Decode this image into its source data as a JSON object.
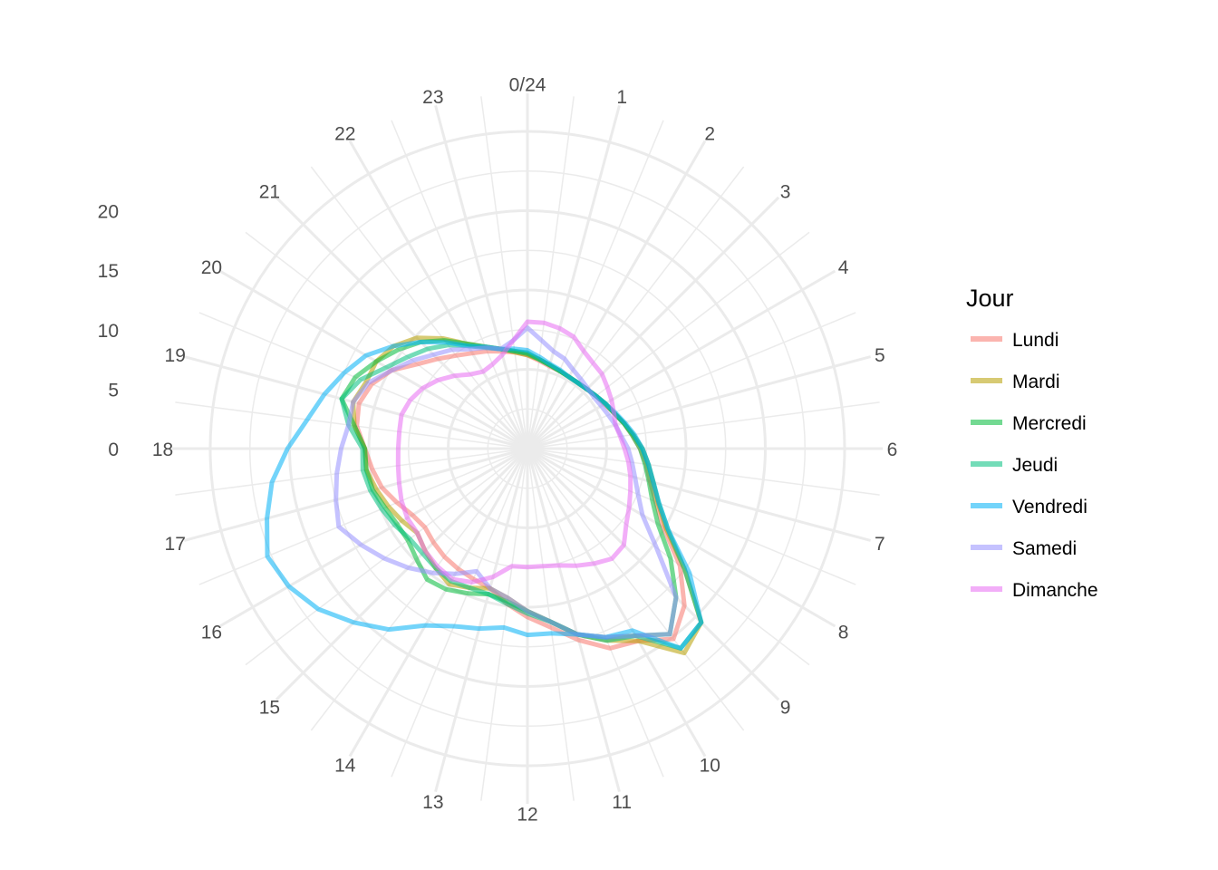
{
  "chart_data": {
    "type": "radar",
    "theta_axis_labels": [
      "0/24",
      "1",
      "2",
      "3",
      "4",
      "5",
      "6",
      "7",
      "8",
      "9",
      "10",
      "11",
      "12",
      "13",
      "14",
      "15",
      "16",
      "17",
      "18",
      "19",
      "20",
      "21",
      "22",
      "23"
    ],
    "r_tick_labels": [
      "0",
      "5",
      "10",
      "15",
      "20"
    ],
    "rlim": [
      0,
      20
    ],
    "legend": {
      "title": "Jour",
      "placement": "right"
    },
    "grid": true,
    "x_step_hours": 0.5,
    "series": [
      {
        "name": "Lundi",
        "color": "#F8766D",
        "values": [
          1.2,
          0.8,
          0.5,
          0.4,
          0.3,
          0.3,
          0.4,
          0.6,
          0.8,
          1.2,
          1.7,
          2.2,
          2.8,
          3.4,
          4.0,
          5.0,
          6.5,
          9.5,
          12.0,
          13.5,
          12.0,
          11.5,
          10.0,
          8.5,
          7.5,
          6.5,
          5.5,
          5.2,
          5.0,
          4.8,
          4.5,
          4.2,
          4.5,
          5.2,
          6.0,
          6.5,
          7.0,
          7.8,
          8.0,
          7.5,
          6.5,
          5.0,
          4.0,
          3.2,
          2.6,
          2.2,
          1.8,
          1.5
        ]
      },
      {
        "name": "Mardi",
        "color": "#B79F00",
        "values": [
          1.2,
          0.9,
          0.6,
          0.4,
          0.3,
          0.3,
          0.4,
          0.6,
          0.9,
          1.2,
          1.7,
          2.3,
          3.0,
          3.6,
          4.3,
          5.2,
          6.8,
          10.0,
          14.0,
          15.0,
          12.0,
          10.8,
          9.5,
          8.0,
          7.0,
          6.0,
          5.5,
          6.0,
          6.5,
          6.0,
          5.5,
          5.0,
          5.5,
          6.0,
          6.5,
          7.0,
          7.0,
          8.0,
          8.5,
          8.0,
          8.0,
          7.5,
          6.5,
          5.0,
          3.5,
          2.6,
          2.0,
          1.5
        ]
      },
      {
        "name": "Mercredi",
        "color": "#00BA38",
        "values": [
          1.3,
          0.9,
          0.6,
          0.4,
          0.3,
          0.3,
          0.4,
          0.6,
          0.9,
          1.2,
          1.7,
          2.2,
          2.8,
          3.3,
          3.9,
          4.7,
          6.0,
          8.5,
          11.0,
          13.0,
          11.5,
          10.5,
          9.5,
          8.0,
          7.0,
          6.3,
          6.0,
          6.5,
          7.0,
          7.2,
          6.5,
          6.0,
          6.0,
          6.3,
          6.8,
          7.0,
          7.0,
          8.0,
          9.5,
          9.0,
          8.0,
          7.0,
          6.0,
          4.8,
          3.5,
          2.6,
          2.0,
          1.6
        ]
      },
      {
        "name": "Jeudi",
        "color": "#00BF7D",
        "values": [
          1.4,
          0.9,
          0.6,
          0.4,
          0.3,
          0.3,
          0.4,
          0.6,
          0.9,
          1.2,
          1.7,
          2.3,
          3.0,
          3.6,
          4.3,
          5.3,
          7.0,
          10.0,
          14.0,
          14.5,
          11.5,
          10.8,
          9.5,
          8.0,
          7.2,
          6.5,
          6.0,
          6.0,
          6.2,
          6.0,
          5.8,
          5.8,
          6.2,
          6.6,
          7.0,
          7.3,
          7.2,
          8.5,
          9.5,
          8.5,
          7.0,
          6.0,
          5.2,
          4.3,
          3.3,
          2.5,
          2.0,
          1.6
        ]
      },
      {
        "name": "Vendredi",
        "color": "#00B0F6",
        "values": [
          1.6,
          1.1,
          0.7,
          0.5,
          0.3,
          0.3,
          0.4,
          0.6,
          0.9,
          1.3,
          1.8,
          2.4,
          3.0,
          3.6,
          4.3,
          5.3,
          7.0,
          10.5,
          14.0,
          14.5,
          11.0,
          10.5,
          9.5,
          9.0,
          9.0,
          8.5,
          9.0,
          9.5,
          10.5,
          12.5,
          14.0,
          15.5,
          16.5,
          17.0,
          16.0,
          15.0,
          13.5,
          12.0,
          11.0,
          10.0,
          9.0,
          7.5,
          6.0,
          4.6,
          3.3,
          2.6,
          2.0,
          1.8
        ]
      },
      {
        "name": "Samedi",
        "color": "#9590FF",
        "values": [
          3.5,
          2.5,
          1.8,
          1.5,
          1.0,
          0.7,
          0.5,
          0.4,
          0.5,
          0.7,
          1.0,
          1.3,
          1.8,
          2.2,
          2.7,
          3.4,
          4.5,
          7.0,
          11.0,
          13.0,
          11.5,
          10.5,
          9.5,
          8.0,
          7.0,
          6.0,
          5.5,
          4.5,
          5.5,
          6.5,
          7.5,
          8.5,
          9.5,
          10.5,
          10.0,
          9.5,
          9.0,
          8.5,
          8.5,
          7.8,
          6.5,
          5.5,
          4.5,
          3.8,
          3.0,
          2.5,
          2.0,
          2.5
        ]
      },
      {
        "name": "Dimanche",
        "color": "#E76BF3",
        "values": [
          4.0,
          4.0,
          3.8,
          3.5,
          2.8,
          2.4,
          2.2,
          1.8,
          1.5,
          1.2,
          1.0,
          1.2,
          1.5,
          1.9,
          2.3,
          2.7,
          3.2,
          3.8,
          4.8,
          5.0,
          4.5,
          4.0,
          3.5,
          3.3,
          3.3,
          3.3,
          4.5,
          5.5,
          6.0,
          5.8,
          5.5,
          5.0,
          5.0,
          4.8,
          4.5,
          4.3,
          4.2,
          4.2,
          4.3,
          4.0,
          3.5,
          2.8,
          2.0,
          1.2,
          0.8,
          1.0,
          1.5,
          2.5
        ]
      }
    ]
  }
}
